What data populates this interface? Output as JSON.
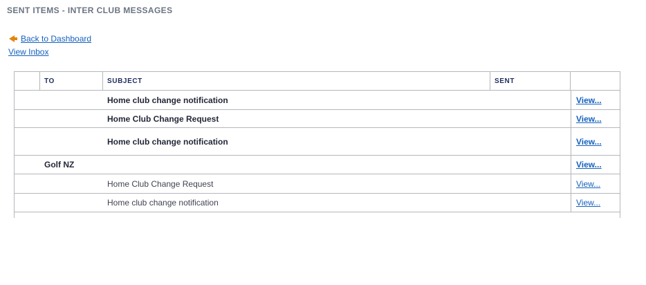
{
  "page": {
    "title": "SENT ITEMS - INTER CLUB MESSAGES"
  },
  "nav": {
    "back_label": "Back to Dashboard",
    "inbox_label": "View Inbox"
  },
  "table": {
    "headers": {
      "select": "",
      "to": "TO",
      "subject": "SUBJECT",
      "sent": "SENT",
      "view": ""
    },
    "rows": [
      {
        "to": "",
        "subject": "Home club change notification",
        "sent": "",
        "unread": true,
        "view_label": "View..."
      },
      {
        "to": "",
        "subject": "Home Club Change Request",
        "sent": "",
        "unread": true,
        "view_label": "View..."
      },
      {
        "to": "",
        "subject": "Home club change notification",
        "sent": "",
        "unread": true,
        "view_label": "View..."
      },
      {
        "to": "Golf NZ",
        "subject": "",
        "sent": "",
        "unread": true,
        "view_label": "View..."
      },
      {
        "to": "",
        "subject": "Home Club Change Request",
        "sent": "",
        "unread": false,
        "view_label": "View..."
      },
      {
        "to": "",
        "subject": "Home club change notification",
        "sent": "",
        "unread": false,
        "view_label": "View..."
      }
    ]
  },
  "colors": {
    "title_text": "#6a7480",
    "header_text": "#1f2b5c",
    "link_blue": "#1561bd",
    "accent_orange": "#e2850b",
    "unread_text": "#242838",
    "read_text": "#3f4450",
    "border_gray": "#b3b6bb",
    "background": "#ffffff"
  }
}
